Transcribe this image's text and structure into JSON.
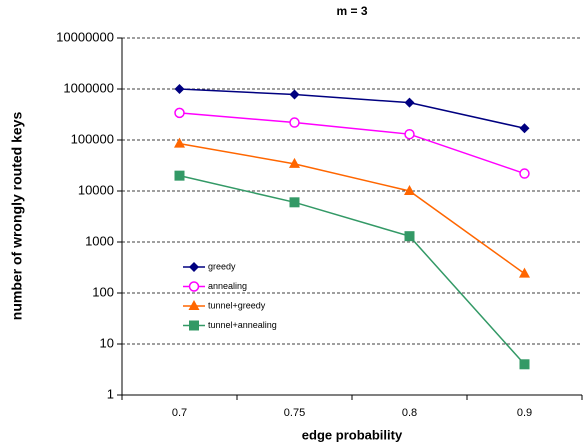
{
  "chart_data": {
    "type": "line",
    "title": "m = 3",
    "x_label": "edge probability",
    "y_label": "number of wrongly routed keys",
    "categories": [
      "0.7",
      "0.75",
      "0.8",
      "0.9"
    ],
    "series": [
      {
        "name": "greedy",
        "color": "#000080",
        "marker": "diamond",
        "values": [
          1000000,
          780000,
          540000,
          170000
        ]
      },
      {
        "name": "annealing",
        "color": "#ff00ff",
        "marker": "open-circle",
        "values": [
          340000,
          220000,
          130000,
          22000
        ]
      },
      {
        "name": "tunnel+greedy",
        "color": "#ff6600",
        "marker": "triangle",
        "values": [
          85000,
          34000,
          10000,
          240
        ]
      },
      {
        "name": "tunnel+annealing",
        "color": "#339966",
        "marker": "square",
        "values": [
          20000,
          6000,
          1300,
          4
        ]
      }
    ],
    "ylim": [
      1,
      10000000
    ],
    "yticks": [
      1,
      10,
      100,
      1000,
      10000,
      100000,
      1000000,
      10000000
    ],
    "log_y": true,
    "grid": true,
    "legend": "left"
  }
}
